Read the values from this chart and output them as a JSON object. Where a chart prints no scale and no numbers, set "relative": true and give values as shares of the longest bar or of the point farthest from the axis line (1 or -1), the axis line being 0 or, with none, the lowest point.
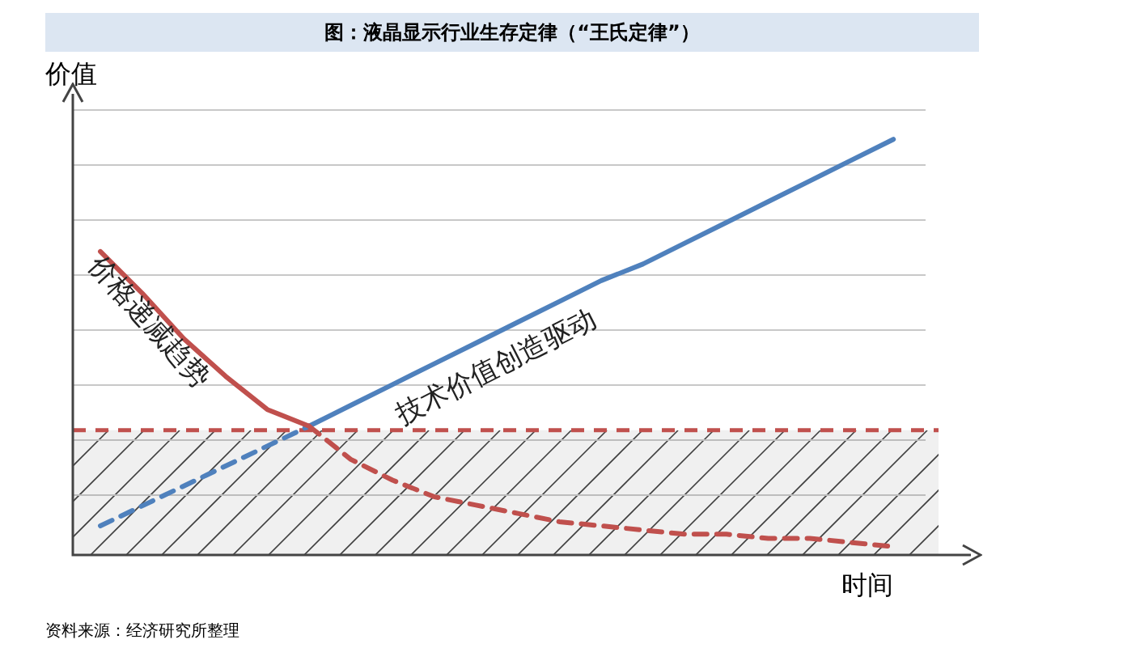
{
  "chart_data": {
    "type": "line",
    "title": "图：液晶显示行业生存定律（“王氏定律”）",
    "xlabel": "时间",
    "ylabel": "价值",
    "relative": true,
    "grid": "y",
    "legend": false,
    "marker": "none",
    "categories": [
      null,
      null,
      null,
      null,
      null,
      null,
      null,
      null,
      null,
      null,
      null,
      null,
      null,
      null,
      null,
      null,
      null,
      null,
      null,
      null
    ],
    "series": [
      {
        "name": "价格递减趋势",
        "color": "#c0504d",
        "line_style": "solid",
        "values": [
          0.73,
          0.63,
          0.52,
          0.43,
          0.35,
          0.31,
          null,
          null,
          null,
          null,
          null,
          null,
          null,
          null,
          null,
          null,
          null,
          null,
          null,
          null
        ]
      },
      {
        "color": "#c0504d",
        "line_style": "dashed",
        "values": [
          null,
          null,
          null,
          null,
          null,
          0.31,
          0.23,
          0.18,
          0.14,
          0.12,
          0.1,
          0.08,
          0.07,
          0.06,
          0.05,
          0.05,
          0.04,
          0.04,
          0.03,
          0.02
        ]
      },
      {
        "name": "技术价值创造驱动",
        "color": "#4f81bd",
        "line_style": "solid",
        "values": [
          null,
          null,
          null,
          null,
          null,
          0.31,
          0.36,
          0.41,
          0.46,
          0.51,
          0.56,
          0.61,
          0.66,
          0.7,
          0.75,
          0.8,
          0.85,
          0.9,
          0.95,
          1.0
        ]
      },
      {
        "color": "#4f81bd",
        "line_style": "dashed",
        "values": [
          0.07,
          0.118,
          0.166,
          0.214,
          0.262,
          0.31,
          null,
          null,
          null,
          null,
          null,
          null,
          null,
          null,
          null,
          null,
          null,
          null,
          null,
          null
        ]
      }
    ],
    "bands": [
      {
        "axis": "y",
        "from": 0,
        "to": 0.3,
        "color": "#404040"
      }
    ],
    "ref_lines": [
      {
        "axis": "y",
        "value": 0.3,
        "color": "#c0504d",
        "line_style": "dashed"
      }
    ],
    "annotations": [
      "资料来源：经济研究所整理"
    ]
  }
}
